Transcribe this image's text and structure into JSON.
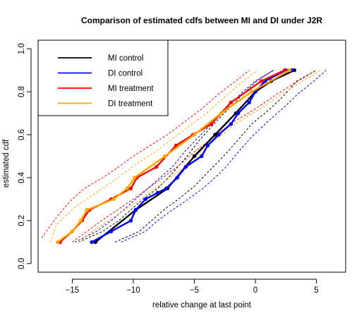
{
  "chart_data": {
    "type": "line",
    "title": "Comparison of estimated cdfs between MI and DI under J2R",
    "xlabel": "relative change at last point",
    "ylabel": "estimated cdf",
    "xlim": [
      -17.8,
      7.4
    ],
    "ylim": [
      -0.04,
      1.04
    ],
    "x_ticks": [
      -15,
      -10,
      -5,
      0,
      5
    ],
    "x_tick_labels": [
      "−15",
      "−10",
      "−5",
      "0",
      "5"
    ],
    "y_ticks": [
      0.0,
      0.2,
      0.4,
      0.6,
      0.8,
      1.0
    ],
    "y_tick_labels": [
      "0.0",
      "0.2",
      "0.4",
      "0.6",
      "0.8",
      "1.0"
    ],
    "grid": false,
    "legend_position": "top-left",
    "series": [
      {
        "name": "MI control",
        "color": "#000000",
        "style": "solid",
        "x": [
          -13.1,
          -9.8,
          -7.2,
          -5.0,
          -3.3,
          -1.6,
          0.0,
          1.3,
          3.2
        ],
        "y": [
          0.1,
          0.25,
          0.35,
          0.5,
          0.6,
          0.7,
          0.8,
          0.85,
          0.9
        ]
      },
      {
        "name": "DI control",
        "color": "#0000ff",
        "style": "solid",
        "x": [
          -13.4,
          -11.8,
          -10.2,
          -9.8,
          -9.0,
          -8.0,
          -7.3,
          -6.4,
          -5.7,
          -4.4,
          -3.9,
          -3.0,
          -2.0,
          -1.4,
          -0.5,
          0.0,
          0.8,
          2.5,
          3.0
        ],
        "y": [
          0.1,
          0.15,
          0.2,
          0.25,
          0.3,
          0.33,
          0.35,
          0.4,
          0.45,
          0.5,
          0.55,
          0.6,
          0.65,
          0.7,
          0.75,
          0.8,
          0.85,
          0.9,
          0.9
        ]
      },
      {
        "name": "MI treatment",
        "color": "#ff0000",
        "style": "solid",
        "x": [
          -16.0,
          -15.0,
          -14.2,
          -13.6,
          -11.8,
          -10.2,
          -9.7,
          -8.1,
          -6.5,
          -5.1,
          -3.6,
          -2.0,
          0.5,
          2.4
        ],
        "y": [
          0.1,
          0.15,
          0.2,
          0.25,
          0.3,
          0.35,
          0.4,
          0.45,
          0.55,
          0.6,
          0.65,
          0.75,
          0.85,
          0.9
        ]
      },
      {
        "name": "DI treatment",
        "color": "#ffa500",
        "style": "solid",
        "x": [
          -16.2,
          -15.0,
          -14.3,
          -13.8,
          -11.6,
          -10.5,
          -9.9,
          -7.4,
          -5.0,
          -2.8,
          -0.3,
          2.8
        ],
        "y": [
          0.1,
          0.15,
          0.2,
          0.25,
          0.3,
          0.35,
          0.4,
          0.5,
          0.6,
          0.7,
          0.8,
          0.9
        ]
      },
      {
        "name": "",
        "color": "#000000",
        "style": "dashed",
        "x": [
          -14.5,
          -12.5,
          -11.2,
          -10.2,
          -9.2,
          -8.0,
          -6.8,
          -5.6,
          -4.5,
          -3.4,
          -2.2,
          -1.0,
          0.1,
          1.5
        ],
        "y": [
          0.1,
          0.15,
          0.2,
          0.25,
          0.3,
          0.35,
          0.42,
          0.5,
          0.58,
          0.65,
          0.72,
          0.79,
          0.85,
          0.9
        ]
      },
      {
        "name": "",
        "color": "#000000",
        "style": "dashed",
        "x": [
          -11.5,
          -9.5,
          -8.5,
          -7.5,
          -6.3,
          -5.0,
          -3.8,
          -2.6,
          -1.5,
          -0.3,
          1.2,
          2.3,
          3.4,
          5.0
        ],
        "y": [
          0.1,
          0.15,
          0.2,
          0.25,
          0.3,
          0.36,
          0.43,
          0.5,
          0.57,
          0.65,
          0.72,
          0.78,
          0.85,
          0.9
        ]
      },
      {
        "name": "",
        "color": "#0000ff",
        "style": "dashed",
        "x": [
          -14.8,
          -13.0,
          -11.8,
          -10.8,
          -9.8,
          -8.8,
          -7.8,
          -6.8,
          -5.8,
          -4.8,
          -3.6,
          -2.4,
          -1.2,
          0.0,
          1.5
        ],
        "y": [
          0.1,
          0.15,
          0.2,
          0.25,
          0.3,
          0.35,
          0.4,
          0.45,
          0.52,
          0.58,
          0.65,
          0.72,
          0.79,
          0.85,
          0.9
        ]
      },
      {
        "name": "",
        "color": "#0000ff",
        "style": "dashed",
        "x": [
          -11.0,
          -9.0,
          -8.0,
          -6.8,
          -5.5,
          -4.3,
          -3.3,
          -2.4,
          -1.4,
          -0.3,
          1.0,
          2.2,
          3.5,
          4.8,
          5.8
        ],
        "y": [
          0.1,
          0.15,
          0.2,
          0.25,
          0.3,
          0.35,
          0.4,
          0.45,
          0.52,
          0.59,
          0.66,
          0.72,
          0.79,
          0.85,
          0.9
        ]
      },
      {
        "name": "",
        "color": "#ff0000",
        "style": "dashed",
        "x": [
          -17.5,
          -16.5,
          -15.8,
          -15.0,
          -14.0,
          -12.5,
          -11.2,
          -10.0,
          -8.6,
          -7.2,
          -5.8,
          -4.4,
          -3.0,
          -1.6,
          -0.5
        ],
        "y": [
          0.12,
          0.2,
          0.25,
          0.3,
          0.35,
          0.4,
          0.45,
          0.5,
          0.55,
          0.6,
          0.66,
          0.72,
          0.79,
          0.85,
          0.9
        ]
      },
      {
        "name": "",
        "color": "#ff0000",
        "style": "dashed",
        "x": [
          -15.0,
          -13.8,
          -12.6,
          -11.3,
          -10.0,
          -8.8,
          -7.6,
          -6.4,
          -5.0,
          -3.4,
          -1.8,
          0.0,
          1.8,
          3.5,
          5.0
        ],
        "y": [
          0.1,
          0.15,
          0.2,
          0.25,
          0.3,
          0.35,
          0.4,
          0.45,
          0.52,
          0.59,
          0.66,
          0.72,
          0.79,
          0.85,
          0.9
        ]
      },
      {
        "name": "",
        "color": "#ffa500",
        "style": "dashed",
        "x": [
          -16.8,
          -16.3,
          -15.6,
          -14.6,
          -13.3,
          -12.0,
          -10.8,
          -9.6,
          -8.2,
          -6.8,
          -5.4,
          -4.0,
          -2.6,
          -1.2,
          0.2
        ],
        "y": [
          0.1,
          0.18,
          0.22,
          0.27,
          0.32,
          0.37,
          0.42,
          0.47,
          0.52,
          0.58,
          0.64,
          0.7,
          0.77,
          0.84,
          0.9
        ]
      },
      {
        "name": "",
        "color": "#ffa500",
        "style": "dashed",
        "x": [
          -14.5,
          -13.3,
          -12.0,
          -10.7,
          -9.4,
          -8.2,
          -7.0,
          -5.8,
          -4.5,
          -3.0,
          -1.4,
          0.4,
          2.2,
          3.9,
          5.4
        ],
        "y": [
          0.1,
          0.15,
          0.2,
          0.25,
          0.3,
          0.35,
          0.4,
          0.45,
          0.52,
          0.59,
          0.66,
          0.72,
          0.79,
          0.85,
          0.9
        ]
      }
    ]
  }
}
